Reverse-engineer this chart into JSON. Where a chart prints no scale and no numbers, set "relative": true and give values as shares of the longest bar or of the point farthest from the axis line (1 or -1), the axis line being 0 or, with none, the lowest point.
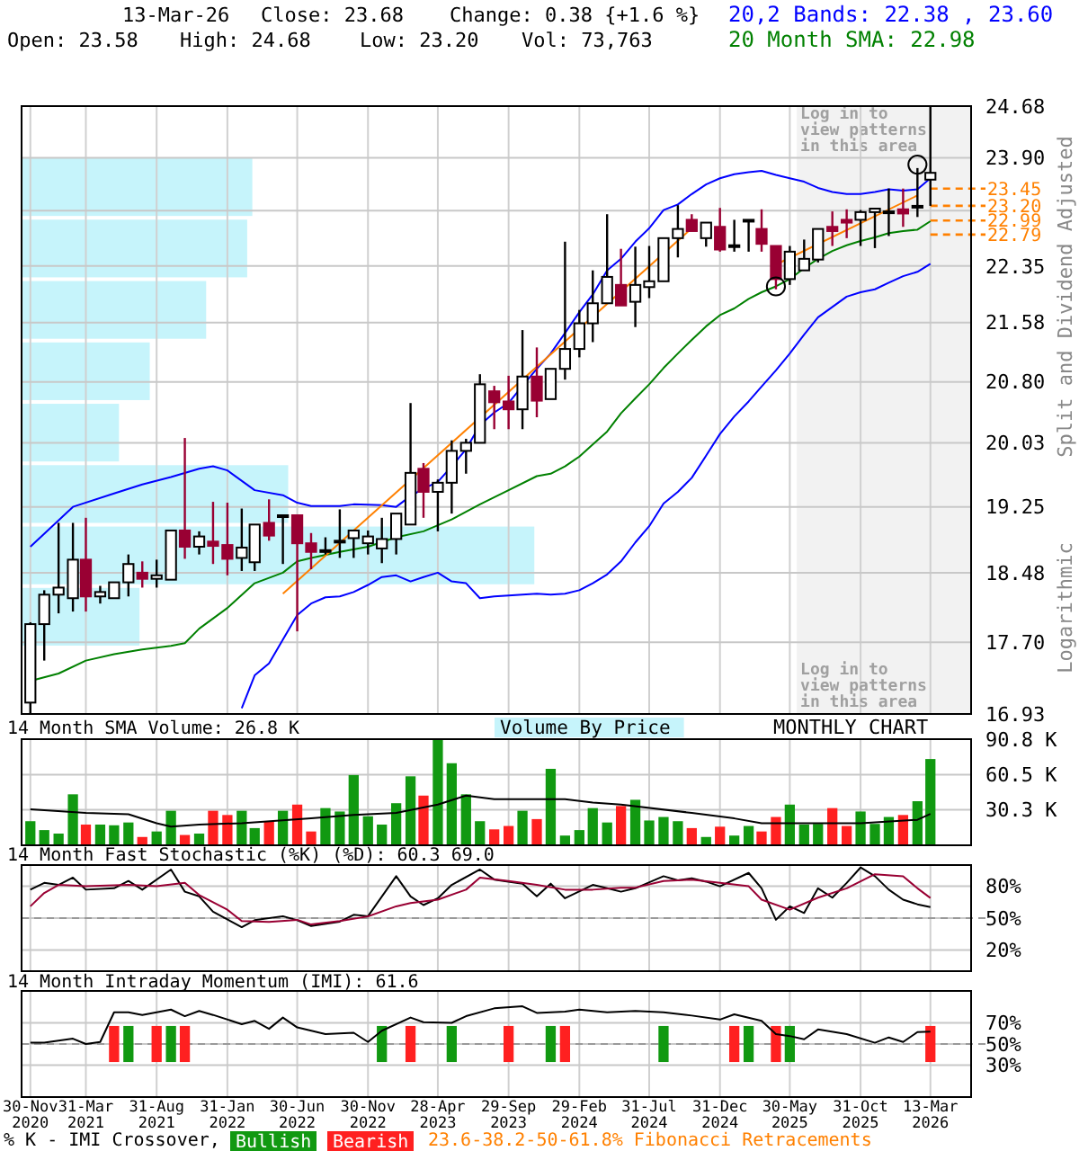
{
  "chart_data": [
    {
      "type": "candlestick",
      "ylabel": "Split and Dividend Adjusted",
      "annotations": [
        "13-Mar-26",
        "Close: 23.68",
        "Change: 0.38 {+1.6 %}",
        "Open: 23.58",
        "High: 24.68",
        "Low: 23.20",
        "Vol: 73,763",
        "Logarithmic",
        "Log in to view patterns in this area"
      ],
      "x": [
        "2020-11",
        "2020-12",
        "2021-01",
        "2021-02",
        "2021-03",
        "2021-04",
        "2021-05",
        "2021-06",
        "2021-07",
        "2021-08",
        "2021-09",
        "2021-10",
        "2021-11",
        "2021-12",
        "2022-01",
        "2022-02",
        "2022-03",
        "2022-04",
        "2022-05",
        "2022-06",
        "2022-07",
        "2022-08",
        "2022-09",
        "2022-10",
        "2022-11",
        "2022-12",
        "2023-01",
        "2023-02",
        "2023-03",
        "2023-04",
        "2023-05",
        "2023-06",
        "2023-07",
        "2023-08",
        "2023-09",
        "2023-10",
        "2023-11",
        "2023-12",
        "2024-01",
        "2024-02",
        "2024-03",
        "2024-04",
        "2024-05",
        "2024-06",
        "2024-07",
        "2024-08",
        "2024-09",
        "2024-10",
        "2024-11",
        "2024-12",
        "2025-01",
        "2025-02",
        "2025-03",
        "2025-04",
        "2025-05",
        "2025-06",
        "2025-07",
        "2025-08",
        "2025-09",
        "2025-10",
        "2025-11",
        "2025-12",
        "2026-01",
        "2026-02",
        "2026-03"
      ],
      "ohlc": [
        [
          17.05,
          17.92,
          16.93,
          17.9
        ],
        [
          17.9,
          18.28,
          17.5,
          18.23
        ],
        [
          18.23,
          19.06,
          18.02,
          18.31
        ],
        [
          18.19,
          19.06,
          18.04,
          18.63
        ],
        [
          18.63,
          19.12,
          18.04,
          18.21
        ],
        [
          18.21,
          18.33,
          18.13,
          18.26
        ],
        [
          18.19,
          18.37,
          18.19,
          18.37
        ],
        [
          18.37,
          18.69,
          18.21,
          18.58
        ],
        [
          18.48,
          18.61,
          18.31,
          18.41
        ],
        [
          18.41,
          18.63,
          18.31,
          18.45
        ],
        [
          18.4,
          18.97,
          18.4,
          18.97
        ],
        [
          18.97,
          20.09,
          18.64,
          18.78
        ],
        [
          18.78,
          18.96,
          18.69,
          18.9
        ],
        [
          18.84,
          19.31,
          18.58,
          18.79
        ],
        [
          18.8,
          19.3,
          18.45,
          18.64
        ],
        [
          18.65,
          19.23,
          18.5,
          18.77
        ],
        [
          18.6,
          19.04,
          18.5,
          19.04
        ],
        [
          19.06,
          19.34,
          18.85,
          18.91
        ],
        [
          19.14,
          19.16,
          18.58,
          19.15
        ],
        [
          19.15,
          19.15,
          17.82,
          18.82
        ],
        [
          18.82,
          18.94,
          18.52,
          18.72
        ],
        [
          18.72,
          18.89,
          18.69,
          18.74
        ],
        [
          18.84,
          19.22,
          18.65,
          18.85
        ],
        [
          18.88,
          18.97,
          18.65,
          18.97
        ],
        [
          18.82,
          18.97,
          18.69,
          18.9
        ],
        [
          18.76,
          19.12,
          18.59,
          18.87
        ],
        [
          18.87,
          19.17,
          18.69,
          19.17
        ],
        [
          19.04,
          20.53,
          19.04,
          19.66
        ],
        [
          19.71,
          19.78,
          19.12,
          19.43
        ],
        [
          19.43,
          19.58,
          18.96,
          19.54
        ],
        [
          19.54,
          20.06,
          19.17,
          19.93
        ],
        [
          19.93,
          20.08,
          19.65,
          20.03
        ],
        [
          20.03,
          20.9,
          20.03,
          20.77
        ],
        [
          20.68,
          20.75,
          20.2,
          20.54
        ],
        [
          20.55,
          20.88,
          20.2,
          20.45
        ],
        [
          20.45,
          21.48,
          20.2,
          20.87
        ],
        [
          20.87,
          21.25,
          20.35,
          20.56
        ],
        [
          20.58,
          20.97,
          20.58,
          20.97
        ],
        [
          20.97,
          22.69,
          20.83,
          21.23
        ],
        [
          21.23,
          21.75,
          21.12,
          21.57
        ],
        [
          21.57,
          22.29,
          21.32,
          21.84
        ],
        [
          21.84,
          23.08,
          21.84,
          22.2
        ],
        [
          22.09,
          22.59,
          21.81,
          21.81
        ],
        [
          21.86,
          22.62,
          21.52,
          22.09
        ],
        [
          22.06,
          22.63,
          21.91,
          22.14
        ],
        [
          22.14,
          22.74,
          22.14,
          22.74
        ],
        [
          22.74,
          23.21,
          22.47,
          22.87
        ],
        [
          23.0,
          23.08,
          22.84,
          22.84
        ],
        [
          22.74,
          22.96,
          22.62,
          22.96
        ],
        [
          22.9,
          23.17,
          22.55,
          22.58
        ],
        [
          22.63,
          23.0,
          22.55,
          22.64
        ],
        [
          22.99,
          23.0,
          22.55,
          23.0
        ],
        [
          22.87,
          23.15,
          22.55,
          22.66
        ],
        [
          22.63,
          22.63,
          22.03,
          22.17
        ],
        [
          22.17,
          22.63,
          22.09,
          22.55
        ],
        [
          22.29,
          22.72,
          22.29,
          22.45
        ],
        [
          22.44,
          22.87,
          22.4,
          22.87
        ],
        [
          22.9,
          23.12,
          22.63,
          22.84
        ],
        [
          23.0,
          23.15,
          22.74,
          22.96
        ],
        [
          23.0,
          23.14,
          22.63,
          23.11
        ],
        [
          23.11,
          23.17,
          22.6,
          23.16
        ],
        [
          23.11,
          23.45,
          22.77,
          23.12
        ],
        [
          23.15,
          23.45,
          22.9,
          23.09
        ],
        [
          23.19,
          23.75,
          23.04,
          23.2
        ],
        [
          23.58,
          24.68,
          23.2,
          23.68
        ]
      ],
      "colors": [
        "#000000",
        "#000000",
        "#000000",
        "#000000",
        "#990033",
        "#000000",
        "#000000",
        "#000000",
        "#990033",
        "#000000",
        "#000000",
        "#990033",
        "#000000",
        "#990033",
        "#990033",
        "#000000",
        "#000000",
        "#990033",
        "#000000",
        "#990033",
        "#990033",
        "#000000",
        "#000000",
        "#000000",
        "#000000",
        "#000000",
        "#000000",
        "#000000",
        "#990033",
        "#000000",
        "#000000",
        "#000000",
        "#000000",
        "#990033",
        "#990033",
        "#000000",
        "#990033",
        "#000000",
        "#000000",
        "#000000",
        "#000000",
        "#000000",
        "#990033",
        "#000000",
        "#000000",
        "#000000",
        "#000000",
        "#990033",
        "#000000",
        "#990033",
        "#000000",
        "#000000",
        "#990033",
        "#990033",
        "#000000",
        "#000000",
        "#000000",
        "#990033",
        "#990033",
        "#000000",
        "#000000",
        "#000000",
        "#990033",
        "#000000",
        "#000000"
      ],
      "series": [
        {
          "type": "line",
          "name": "20,2 Bands: 22.38 , 23.60",
          "color": "#0000ff",
          "x": [
            "2020-11",
            "2021-02",
            "2021-05",
            "2021-07",
            "2021-09",
            "2021-11",
            "2021-12",
            "2022-01",
            "2022-03",
            "2022-05",
            "2022-06",
            "2022-07",
            "2022-09",
            "2022-10",
            "2022-12",
            "2023-01",
            "2023-02",
            "2023-03",
            "2023-04",
            "2023-05",
            "2023-06",
            "2023-07",
            "2023-08",
            "2023-09",
            "2023-10",
            "2023-11",
            "2023-12",
            "2024-01",
            "2024-02",
            "2024-03",
            "2024-04",
            "2024-05",
            "2024-06",
            "2024-07",
            "2024-08",
            "2024-09",
            "2024-10",
            "2024-11",
            "2024-12",
            "2025-01",
            "2025-02",
            "2025-03",
            "2025-04",
            "2025-05",
            "2025-06",
            "2025-07",
            "2025-08",
            "2025-09",
            "2025-10",
            "2025-11",
            "2025-12",
            "2026-01",
            "2026-02",
            "2026-03"
          ],
          "values": [
            18.78,
            19.25,
            19.41,
            19.52,
            19.61,
            19.71,
            19.74,
            19.69,
            19.45,
            19.39,
            19.3,
            19.26,
            19.26,
            19.28,
            19.27,
            19.25,
            19.38,
            19.47,
            19.55,
            19.74,
            19.95,
            20.25,
            20.41,
            20.53,
            20.75,
            20.97,
            21.17,
            21.44,
            21.72,
            21.96,
            22.29,
            22.45,
            22.69,
            22.88,
            23.14,
            23.22,
            23.37,
            23.51,
            23.6,
            23.66,
            23.69,
            23.71,
            23.65,
            23.6,
            23.55,
            23.46,
            23.4,
            23.37,
            23.37,
            23.4,
            23.44,
            23.42,
            23.44,
            23.6
          ]
        },
        {
          "type": "line",
          "color": "#0000ff",
          "x": [
            "2022-02",
            "2022-03",
            "2022-04",
            "2022-05",
            "2022-06",
            "2022-07",
            "2022-08",
            "2022-09",
            "2022-10",
            "2022-11",
            "2022-12",
            "2023-01",
            "2023-02",
            "2023-03",
            "2023-04",
            "2023-05",
            "2023-06",
            "2023-07",
            "2023-08",
            "2023-09",
            "2023-10",
            "2023-11",
            "2023-12",
            "2024-01",
            "2024-02",
            "2024-03",
            "2024-04",
            "2024-05",
            "2024-06",
            "2024-07",
            "2024-08",
            "2024-09",
            "2024-10",
            "2024-11",
            "2024-12",
            "2025-01",
            "2025-02",
            "2025-03",
            "2025-04",
            "2025-05",
            "2025-06",
            "2025-07",
            "2025-08",
            "2025-09",
            "2025-10",
            "2025-11",
            "2025-12",
            "2026-01",
            "2026-02",
            "2026-03"
          ],
          "values": [
            16.99,
            17.34,
            17.47,
            17.73,
            18.0,
            18.13,
            18.2,
            18.21,
            18.26,
            18.34,
            18.43,
            18.45,
            18.38,
            18.43,
            18.48,
            18.38,
            18.36,
            18.19,
            18.21,
            18.22,
            18.23,
            18.24,
            18.23,
            18.24,
            18.28,
            18.36,
            18.46,
            18.61,
            18.83,
            19.02,
            19.29,
            19.43,
            19.6,
            19.87,
            20.14,
            20.36,
            20.55,
            20.74,
            20.95,
            21.17,
            21.42,
            21.65,
            21.79,
            21.93,
            21.99,
            22.03,
            22.12,
            22.21,
            22.27,
            22.38
          ]
        },
        {
          "type": "line",
          "name": "20 Month SMA: 22.98",
          "color": "#008000",
          "x": [
            "2020-11",
            "2021-01",
            "2021-03",
            "2021-05",
            "2021-07",
            "2021-09",
            "2021-10",
            "2021-11",
            "2022-01",
            "2022-03",
            "2022-05",
            "2022-06",
            "2022-07",
            "2022-09",
            "2022-11",
            "2023-01",
            "2023-03",
            "2023-05",
            "2023-07",
            "2023-09",
            "2023-11",
            "2023-12",
            "2024-01",
            "2024-02",
            "2024-03",
            "2024-04",
            "2024-05",
            "2024-06",
            "2024-07",
            "2024-08",
            "2024-09",
            "2024-10",
            "2024-11",
            "2024-12",
            "2025-01",
            "2025-02",
            "2025-03",
            "2025-04",
            "2025-05",
            "2025-06",
            "2025-07",
            "2025-08",
            "2025-09",
            "2025-10",
            "2025-11",
            "2025-12",
            "2026-01",
            "2026-02",
            "2026-03"
          ],
          "values": [
            17.28,
            17.36,
            17.5,
            17.57,
            17.62,
            17.66,
            17.69,
            17.85,
            18.08,
            18.36,
            18.48,
            18.61,
            18.65,
            18.72,
            18.78,
            18.89,
            18.96,
            19.1,
            19.28,
            19.45,
            19.62,
            19.65,
            19.74,
            19.86,
            20.01,
            20.17,
            20.4,
            20.59,
            20.77,
            20.98,
            21.17,
            21.35,
            21.53,
            21.68,
            21.77,
            21.9,
            21.99,
            22.07,
            22.17,
            22.32,
            22.45,
            22.56,
            22.64,
            22.7,
            22.75,
            22.81,
            22.84,
            22.86,
            22.98
          ]
        },
        {
          "type": "line",
          "color": "#ff8000",
          "x": [
            "2022-05",
            "2024-10"
          ],
          "values": [
            18.24,
            22.88
          ]
        },
        {
          "type": "line",
          "color": "#ff8000",
          "x": [
            "2025-04",
            "2026-02"
          ],
          "values": [
            22.37,
            23.35
          ]
        },
        {
          "type": "scatter",
          "marker": "circle",
          "color": "#000000",
          "x": [
            "2025-04",
            "2026-02"
          ],
          "values": [
            22.07,
            23.8
          ]
        }
      ],
      "bands": [
        {
          "axis": "x",
          "from": "2025-05-16",
          "to": "2026-05-28",
          "label": "Log in to view patterns in this area",
          "color": "#f2f2f2"
        }
      ],
      "ref_lines": [
        {
          "axis": "y",
          "value": 23.45,
          "label": "23.45",
          "color": "#ff8000",
          "line_style": "dashed"
        },
        {
          "axis": "y",
          "value": 23.2,
          "label": "23.20",
          "color": "#ff8000",
          "line_style": "dashed"
        },
        {
          "axis": "y",
          "value": 22.99,
          "label": "22.99",
          "color": "#ff8000",
          "line_style": "dashed"
        },
        {
          "axis": "y",
          "value": 22.79,
          "label": "22.79",
          "color": "#ff8000",
          "line_style": "dashed"
        }
      ],
      "xlim": [
        "2020-10-13",
        "2026-05-28"
      ],
      "xticks": [
        {
          "value": "2020-11",
          "label": null
        },
        {
          "value": "2021-03",
          "label": null
        },
        {
          "value": "2021-08",
          "label": null
        },
        {
          "value": "2022-01",
          "label": null
        },
        {
          "value": "2022-06",
          "label": null
        },
        {
          "value": "2022-11",
          "label": null
        },
        {
          "value": "2023-04",
          "label": null
        },
        {
          "value": "2023-09",
          "label": null
        },
        {
          "value": "2024-02",
          "label": null
        },
        {
          "value": "2024-07",
          "label": null
        },
        {
          "value": "2024-12",
          "label": null
        },
        {
          "value": "2025-05",
          "label": null
        },
        {
          "value": "2025-10",
          "label": null
        },
        {
          "value": "2026-03",
          "label": null
        }
      ],
      "ylim": [
        16.93,
        24.68
      ],
      "yticks": [
        {
          "value": 24.68,
          "label": "24.68"
        },
        {
          "value": 23.9,
          "label": "23.90"
        },
        {
          "value": 23.13,
          "label": null
        },
        {
          "value": 22.35,
          "label": "22.35"
        },
        {
          "value": 21.58,
          "label": "21.58"
        },
        {
          "value": 20.8,
          "label": "20.80"
        },
        {
          "value": 20.03,
          "label": "20.03"
        },
        {
          "value": 19.25,
          "label": "19.25"
        },
        {
          "value": 18.48,
          "label": "18.48"
        },
        {
          "value": 17.7,
          "label": "17.70"
        },
        {
          "value": 16.93,
          "label": "16.93"
        }
      ],
      "log": true,
      "grid": true,
      "legend": "top right",
      "tick_labels": "y"
    },
    {
      "type": "bar",
      "title": "14 Month SMA Volume: 26.8 K",
      "annotations": [
        "MONTHLY CHART"
      ],
      "x": [
        "2020-11",
        "2020-12",
        "2021-01",
        "2021-02",
        "2021-03",
        "2021-04",
        "2021-05",
        "2021-06",
        "2021-07",
        "2021-08",
        "2021-09",
        "2021-10",
        "2021-11",
        "2021-12",
        "2022-01",
        "2022-02",
        "2022-03",
        "2022-04",
        "2022-05",
        "2022-06",
        "2022-07",
        "2022-08",
        "2022-09",
        "2022-10",
        "2022-11",
        "2022-12",
        "2023-01",
        "2023-02",
        "2023-03",
        "2023-04",
        "2023-05",
        "2023-06",
        "2023-07",
        "2023-08",
        "2023-09",
        "2023-10",
        "2023-11",
        "2023-12",
        "2024-01",
        "2024-02",
        "2024-03",
        "2024-04",
        "2024-05",
        "2024-06",
        "2024-07",
        "2024-08",
        "2024-09",
        "2024-10",
        "2024-11",
        "2024-12",
        "2025-01",
        "2025-02",
        "2025-03",
        "2025-04",
        "2025-05",
        "2025-06",
        "2025-07",
        "2025-08",
        "2025-09",
        "2025-10",
        "2025-11",
        "2025-12",
        "2026-01",
        "2026-02",
        "2026-03"
      ],
      "series": [
        {
          "type": "bar",
          "values": [
            20.6,
            13.0,
            10.0,
            43.6,
            17.7,
            17.7,
            17.1,
            19.5,
            7.1,
            11.8,
            29.5,
            8.8,
            10.0,
            29.5,
            25.9,
            29.5,
            14.7,
            20.6,
            29.5,
            34.8,
            11.8,
            31.8,
            28.9,
            60.1,
            24.8,
            17.7,
            36.0,
            59.0,
            42.5,
            90.2,
            70.2,
            43.6,
            20.6,
            13.6,
            16.5,
            29.5,
            22.4,
            65.4,
            8.3,
            13.0,
            31.8,
            19.5,
            33.6,
            38.9,
            21.2,
            24.2,
            20.6,
            14.7,
            7.1,
            15.9,
            8.3,
            16.5,
            11.8,
            24.2,
            34.8,
            17.7,
            18.3,
            31.8,
            16.5,
            28.9,
            18.3,
            24.2,
            25.9,
            37.7,
            73.8
          ],
          "colors": [
            "#119911",
            "#119911",
            "#119911",
            "#119911",
            "#ff2020",
            "#119911",
            "#119911",
            "#119911",
            "#ff2020",
            "#119911",
            "#119911",
            "#ff2020",
            "#119911",
            "#ff2020",
            "#ff2020",
            "#119911",
            "#119911",
            "#ff2020",
            "#119911",
            "#ff2020",
            "#ff2020",
            "#119911",
            "#119911",
            "#119911",
            "#119911",
            "#119911",
            "#119911",
            "#119911",
            "#ff2020",
            "#119911",
            "#119911",
            "#119911",
            "#119911",
            "#ff2020",
            "#ff2020",
            "#119911",
            "#ff2020",
            "#119911",
            "#119911",
            "#119911",
            "#119911",
            "#119911",
            "#ff2020",
            "#119911",
            "#119911",
            "#119911",
            "#119911",
            "#ff2020",
            "#119911",
            "#ff2020",
            "#119911",
            "#119911",
            "#ff2020",
            "#ff2020",
            "#119911",
            "#119911",
            "#119911",
            "#ff2020",
            "#ff2020",
            "#119911",
            "#119911",
            "#119911",
            "#ff2020",
            "#119911",
            "#119911"
          ]
        },
        {
          "type": "line",
          "color": "#000000",
          "x": [
            "2020-11",
            "2021-03",
            "2021-06",
            "2021-08",
            "2021-09",
            "2021-11",
            "2022-02",
            "2022-07",
            "2022-10",
            "2023-01",
            "2023-04",
            "2023-06",
            "2023-08",
            "2024-01",
            "2024-03",
            "2024-05",
            "2024-10",
            "2025-01",
            "2025-03",
            "2025-10",
            "2026-02",
            "2026-03"
          ],
          "values": [
            30.7,
            27.7,
            26.5,
            18.9,
            15.9,
            17.7,
            18.9,
            23.0,
            26.0,
            27.7,
            34.8,
            42.5,
            39.5,
            39.5,
            36.6,
            34.8,
            27.7,
            23.0,
            18.9,
            18.9,
            21.8,
            26.8
          ]
        }
      ],
      "xlim": [
        "2020-10-13",
        "2026-05-28"
      ],
      "xticks": [
        {
          "value": "2020-11",
          "label": null
        },
        {
          "value": "2021-03",
          "label": null
        },
        {
          "value": "2021-08",
          "label": null
        },
        {
          "value": "2022-01",
          "label": null
        },
        {
          "value": "2022-06",
          "label": null
        },
        {
          "value": "2022-11",
          "label": null
        },
        {
          "value": "2023-04",
          "label": null
        },
        {
          "value": "2023-09",
          "label": null
        },
        {
          "value": "2024-02",
          "label": null
        },
        {
          "value": "2024-07",
          "label": null
        },
        {
          "value": "2024-12",
          "label": null
        },
        {
          "value": "2025-05",
          "label": null
        },
        {
          "value": "2025-10",
          "label": null
        },
        {
          "value": "2026-03",
          "label": null
        }
      ],
      "ylim": [
        0,
        90.8
      ],
      "yticks": [
        {
          "value": 90.8,
          "label": "90.8 K"
        },
        {
          "value": 60.5,
          "label": "60.5 K"
        },
        {
          "value": 30.3,
          "label": "30.3 K"
        }
      ],
      "grid": true,
      "tick_labels": "y"
    },
    {
      "type": "line",
      "title": "14 Month Fast Stochastic (%K) (%D): 60.3  69.0",
      "series": [
        {
          "type": "line",
          "color": "#000000",
          "x": [
            "2020-11",
            "2020-12",
            "2021-01",
            "2021-02",
            "2021-03",
            "2021-05",
            "2021-06",
            "2021-07",
            "2021-09",
            "2021-10",
            "2021-11",
            "2021-12",
            "2022-02",
            "2022-03",
            "2022-05",
            "2022-06",
            "2022-07",
            "2022-09",
            "2022-10",
            "2022-11",
            "2023-01",
            "2023-02",
            "2023-03",
            "2023-04",
            "2023-05",
            "2023-07",
            "2023-08",
            "2023-10",
            "2023-11",
            "2023-12",
            "2024-01",
            "2024-03",
            "2024-04",
            "2024-05",
            "2024-06",
            "2024-08",
            "2024-09",
            "2024-10",
            "2024-11",
            "2024-12",
            "2025-02",
            "2025-03",
            "2025-04",
            "2025-05",
            "2025-06",
            "2025-07",
            "2025-08",
            "2025-09",
            "2025-10",
            "2025-11",
            "2025-12",
            "2026-01",
            "2026-02",
            "2026-03"
          ],
          "values": [
            76.8,
            83.2,
            81.3,
            88.2,
            76.8,
            78.1,
            85.0,
            76.8,
            95.8,
            74.9,
            70.5,
            56.0,
            41.5,
            48.0,
            51.8,
            48.0,
            42.5,
            46.7,
            53.1,
            51.8,
            89.5,
            70.5,
            62.3,
            68.7,
            81.3,
            95.8,
            86.3,
            82.5,
            70.5,
            82.5,
            68.7,
            81.3,
            78.1,
            74.9,
            78.1,
            89.5,
            85.6,
            87.6,
            84.4,
            80.0,
            92.6,
            78.1,
            48.4,
            61.1,
            54.8,
            78.1,
            69.3,
            83.2,
            97.7,
            89.5,
            76.8,
            67.4,
            63.0,
            60.3
          ]
        },
        {
          "type": "line",
          "color": "#990033",
          "x": [
            "2020-11",
            "2020-12",
            "2021-01",
            "2021-03",
            "2021-06",
            "2021-08",
            "2021-10",
            "2021-11",
            "2022-01",
            "2022-02",
            "2022-04",
            "2022-06",
            "2022-07",
            "2022-09",
            "2022-11",
            "2023-01",
            "2023-02",
            "2023-04",
            "2023-06",
            "2023-07",
            "2023-09",
            "2023-11",
            "2024-01",
            "2024-03",
            "2024-05",
            "2024-06",
            "2024-08",
            "2024-10",
            "2024-12",
            "2025-02",
            "2025-03",
            "2025-05",
            "2025-07",
            "2025-09",
            "2025-11",
            "2026-01",
            "2026-02",
            "2026-03"
          ],
          "values": [
            61.1,
            73.7,
            81.3,
            80.0,
            81.3,
            80.0,
            83.2,
            71.8,
            57.9,
            47.2,
            46.5,
            48.4,
            44.0,
            47.2,
            51.6,
            61.1,
            64.2,
            67.4,
            76.8,
            88.2,
            85.0,
            81.3,
            76.8,
            76.8,
            78.7,
            78.7,
            85.0,
            86.3,
            83.2,
            80.0,
            67.4,
            57.9,
            69.3,
            78.1,
            91.4,
            89.5,
            78.1,
            69.0
          ]
        }
      ],
      "ref_lines": [
        {
          "axis": "y",
          "value": 50,
          "color": "#999999",
          "line_style": "dashed"
        }
      ],
      "xlim": [
        "2020-10-13",
        "2026-05-28"
      ],
      "xticks": [
        {
          "value": "2020-11",
          "label": null
        },
        {
          "value": "2021-03",
          "label": null
        },
        {
          "value": "2021-08",
          "label": null
        },
        {
          "value": "2022-01",
          "label": null
        },
        {
          "value": "2022-06",
          "label": null
        },
        {
          "value": "2022-11",
          "label": null
        },
        {
          "value": "2023-04",
          "label": null
        },
        {
          "value": "2023-09",
          "label": null
        },
        {
          "value": "2024-02",
          "label": null
        },
        {
          "value": "2024-07",
          "label": null
        },
        {
          "value": "2024-12",
          "label": null
        },
        {
          "value": "2025-05",
          "label": null
        },
        {
          "value": "2025-10",
          "label": null
        },
        {
          "value": "2026-03",
          "label": null
        }
      ],
      "ylim": [
        0,
        100
      ],
      "yticks": [
        {
          "value": 80,
          "label": "80%"
        },
        {
          "value": 50,
          "label": "50%"
        },
        {
          "value": 20,
          "label": "20%"
        }
      ],
      "grid": true,
      "tick_labels": "y"
    },
    {
      "type": "line",
      "title": "14 Month Intraday Momentum (IMI): 61.6",
      "annotations": [
        "% K - IMI Crossover,",
        "23.6-38.2-50-61.8% Fibonacci Retracements"
      ],
      "series": [
        {
          "type": "line",
          "color": "#000000",
          "x": [
            "2020-11",
            "2020-12",
            "2021-02",
            "2021-03",
            "2021-04",
            "2021-05",
            "2021-06",
            "2021-07",
            "2021-09",
            "2021-10",
            "2021-11",
            "2021-12",
            "2022-02",
            "2022-03",
            "2022-04",
            "2022-05",
            "2022-06",
            "2022-08",
            "2022-10",
            "2022-11",
            "2022-12",
            "2023-02",
            "2023-03",
            "2023-05",
            "2023-06",
            "2023-08",
            "2023-10",
            "2023-11",
            "2024-01",
            "2024-02",
            "2024-04",
            "2024-06",
            "2024-08",
            "2024-10",
            "2024-12",
            "2025-01",
            "2025-03",
            "2025-04",
            "2025-05",
            "2025-06",
            "2025-07",
            "2025-09",
            "2025-11",
            "2025-12",
            "2026-01",
            "2026-02",
            "2026-03"
          ],
          "values": [
            51.2,
            51.2,
            55.0,
            50.0,
            51.9,
            79.9,
            79.9,
            77.4,
            82.4,
            76.2,
            81.1,
            77.4,
            68.7,
            71.8,
            64.3,
            74.9,
            65.6,
            59.3,
            60.6,
            51.9,
            62.5,
            74.9,
            70.6,
            69.9,
            76.2,
            83.6,
            85.5,
            79.3,
            80.5,
            82.4,
            79.9,
            81.1,
            79.9,
            76.8,
            73.0,
            78.0,
            71.8,
            59.3,
            57.5,
            54.4,
            63.7,
            59.3,
            51.2,
            56.2,
            51.9,
            61.2,
            61.6
          ]
        },
        {
          "type": "bar",
          "name": "Bullish",
          "color": "#119911",
          "x": [
            "2021-06",
            "2021-09",
            "2022-12",
            "2023-05",
            "2023-12",
            "2024-08",
            "2025-02",
            "2025-05"
          ],
          "base": [
            33,
            33,
            33,
            33,
            33,
            33,
            33,
            33
          ],
          "values": [
            34,
            34,
            34,
            34,
            34,
            34,
            34,
            34
          ]
        },
        {
          "type": "bar",
          "name": "Bearish",
          "color": "#ff2020",
          "x": [
            "2021-05",
            "2021-08",
            "2021-10",
            "2023-02",
            "2023-09",
            "2024-01",
            "2025-01",
            "2025-04",
            "2026-03"
          ],
          "base": [
            33,
            33,
            33,
            33,
            33,
            33,
            33,
            33,
            33
          ],
          "values": [
            34,
            34,
            34,
            34,
            34,
            34,
            34,
            34,
            34
          ]
        }
      ],
      "ref_lines": [
        {
          "axis": "y",
          "value": 50,
          "color": "#999999",
          "line_style": "dashed"
        }
      ],
      "xlim": [
        "2020-10-13",
        "2026-05-28"
      ],
      "xticks": [
        {
          "value": "2020-11",
          "label": "30-Nov 2020"
        },
        {
          "value": "2021-03",
          "label": "31-Mar 2021"
        },
        {
          "value": "2021-08",
          "label": "31-Aug 2021"
        },
        {
          "value": "2022-01",
          "label": "31-Jan 2022"
        },
        {
          "value": "2022-06",
          "label": "30-Jun 2022"
        },
        {
          "value": "2022-11",
          "label": "30-Nov 2022"
        },
        {
          "value": "2023-04",
          "label": "28-Apr 2023"
        },
        {
          "value": "2023-09",
          "label": "29-Sep 2023"
        },
        {
          "value": "2024-02",
          "label": "29-Feb 2024"
        },
        {
          "value": "2024-07",
          "label": "31-Jul 2024"
        },
        {
          "value": "2024-12",
          "label": "31-Dec 2024"
        },
        {
          "value": "2025-05",
          "label": "30-May 2025"
        },
        {
          "value": "2025-10",
          "label": "31-Oct 2025"
        },
        {
          "value": "2026-03",
          "label": "13-Mar 2026"
        }
      ],
      "ylim": [
        0,
        100
      ],
      "yticks": [
        {
          "value": 70,
          "label": "70%"
        },
        {
          "value": 50,
          "label": "50%"
        },
        {
          "value": 30,
          "label": "30%"
        }
      ],
      "grid": true,
      "legend": "bottom"
    },
    {
      "type": "bar",
      "orientation": "horizontal",
      "relative": true,
      "categories": [
        null,
        null,
        null,
        null,
        null,
        null,
        null,
        null
      ],
      "series": [
        {
          "name": "Volume By Price",
          "color": "#c6f4fb",
          "values": [
            0.45,
            0.44,
            0.36,
            0.25,
            0.19,
            0.52,
            1,
            0.23
          ]
        }
      ],
      "legend": "bottom"
    }
  ]
}
